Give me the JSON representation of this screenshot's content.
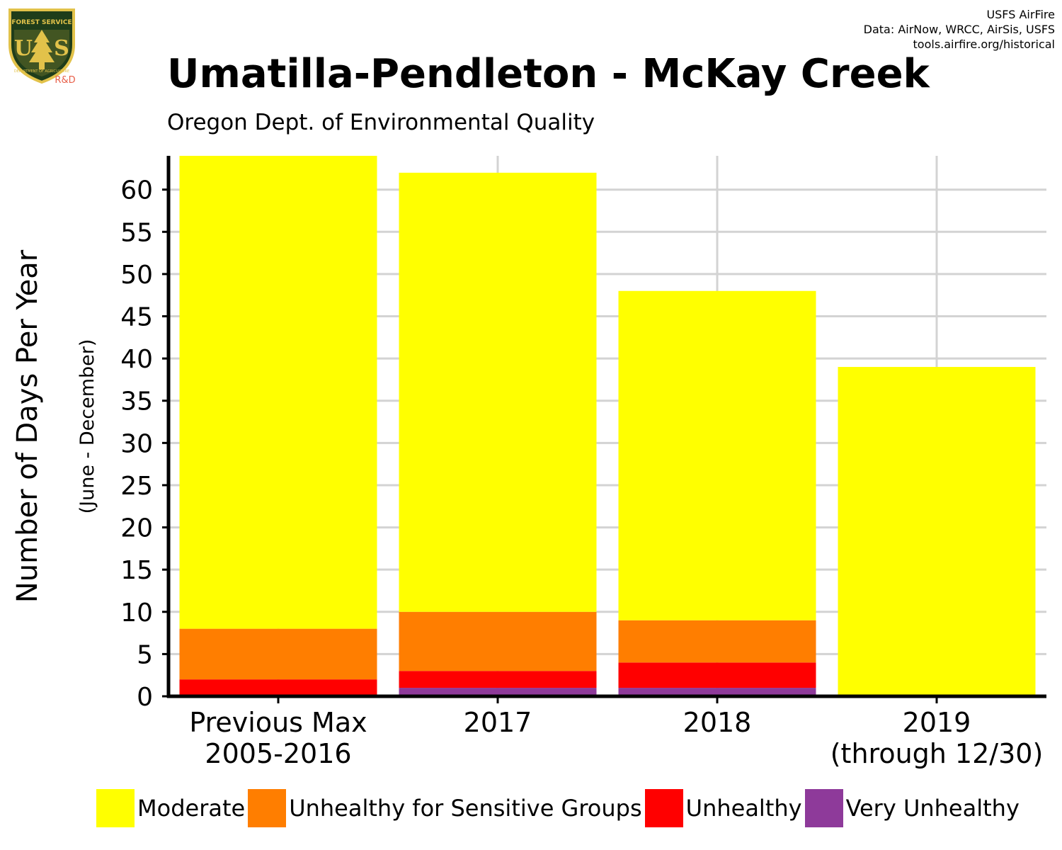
{
  "header": {
    "logo_text": [
      "FOREST SERVICE",
      "U",
      "S",
      "DEPARTMENT OF AGRICULTURE"
    ],
    "logo_suffix": "R&D",
    "credits": [
      "USFS AirFire",
      "Data: AirNow, WRCC, AirSis, USFS",
      "tools.airfire.org/historical"
    ]
  },
  "chart_data": {
    "type": "bar",
    "stacked": true,
    "title": "Umatilla-Pendleton - McKay Creek",
    "subtitle": "Oregon Dept. of Environmental Quality",
    "ylabel": "Number of Days Per Year",
    "ylabel_sub": "(June - December)",
    "categories": [
      "Previous Max\n2005-2016",
      "2017",
      "2018",
      "2019\n(through 12/30)"
    ],
    "ylim": [
      0,
      64
    ],
    "yticks": [
      0,
      5,
      10,
      15,
      20,
      25,
      30,
      35,
      40,
      45,
      50,
      55,
      60
    ],
    "grid": true,
    "legend_position": "bottom",
    "series": [
      {
        "name": "Very Unhealthy",
        "color": "#8E3A9A",
        "values": [
          0,
          1,
          1,
          0
        ]
      },
      {
        "name": "Unhealthy",
        "color": "#FF0000",
        "values": [
          2,
          2,
          3,
          0
        ]
      },
      {
        "name": "Unhealthy for Sensitive Groups",
        "color": "#FF7E00",
        "values": [
          6,
          7,
          5,
          0
        ]
      },
      {
        "name": "Moderate",
        "color": "#FFFF00",
        "values": [
          56,
          52,
          39,
          39
        ]
      }
    ],
    "legend_order": [
      "Moderate",
      "Unhealthy for Sensitive Groups",
      "Unhealthy",
      "Very Unhealthy"
    ]
  }
}
